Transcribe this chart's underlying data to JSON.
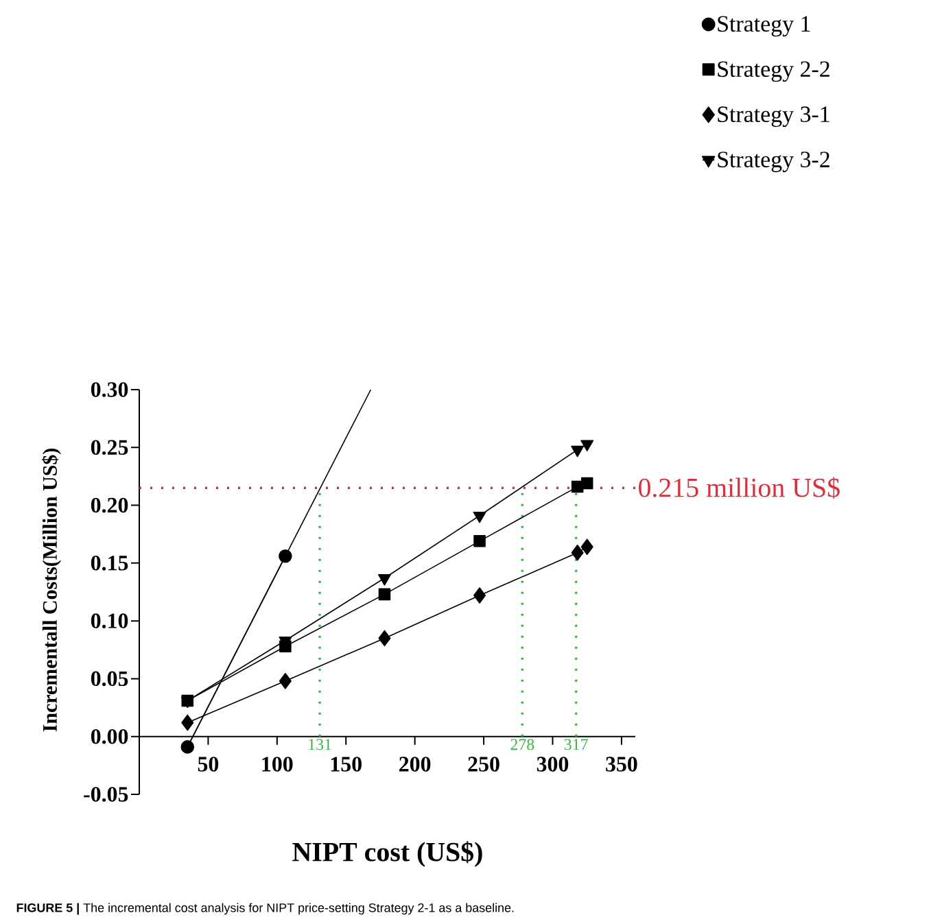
{
  "chart_data": {
    "type": "line",
    "xlabel": "NIPT cost (US$)",
    "ylabel": "Incrementall Costs(Million US$)",
    "xlim": [
      0,
      360
    ],
    "ylim": [
      -0.05,
      0.3
    ],
    "xticks": [
      50,
      100,
      150,
      200,
      250,
      300,
      350
    ],
    "yticks": [
      {
        "value": -0.05,
        "label": "-0.05"
      },
      {
        "value": 0,
        "label": "0.00"
      },
      {
        "value": 0.05,
        "label": "0.05"
      },
      {
        "value": 0.1,
        "label": "0.10"
      },
      {
        "value": 0.15,
        "label": "0.15"
      },
      {
        "value": 0.2,
        "label": "0.20"
      },
      {
        "value": 0.25,
        "label": "0.25"
      },
      {
        "value": 0.3,
        "label": "0.30"
      }
    ],
    "legend": "top right",
    "series": [
      {
        "name": "Strategy 1",
        "color": "#000000",
        "marker": "circle",
        "x": [
          35,
          106
        ],
        "values": [
          -0.009,
          0.156
        ]
      },
      {
        "name": "Strategy 2-2",
        "color": "#000000",
        "marker": "square",
        "x": [
          35,
          106,
          178,
          247,
          318,
          325
        ],
        "values": [
          0.031,
          0.078,
          0.123,
          0.169,
          0.216,
          0.219
        ]
      },
      {
        "name": "Strategy 3-1",
        "color": "#000000",
        "marker": "diamond",
        "x": [
          35,
          106,
          178,
          247,
          318,
          325
        ],
        "values": [
          0.012,
          0.048,
          0.085,
          0.122,
          0.159,
          0.164
        ]
      },
      {
        "name": "Strategy 3-2",
        "color": "#000000",
        "marker": "triangle",
        "x": [
          35,
          106,
          178,
          247,
          318,
          325
        ],
        "values": [
          0.031,
          0.083,
          0.137,
          0.191,
          0.248,
          0.253
        ]
      },
      {
        "type": "line",
        "color": "#000000",
        "marker": "none",
        "x": [
          35,
          168
        ],
        "values": [
          -0.009,
          0.3
        ]
      }
    ],
    "ref_lines": [
      {
        "axis": "y",
        "value": 0.215,
        "label": "0.215 million US$",
        "color": "#d9303c",
        "line_style": "dotted"
      },
      {
        "axis": "x",
        "value": 131,
        "label": "131",
        "color": "#3cb44b",
        "line_style": "dotted"
      },
      {
        "axis": "x",
        "value": 278,
        "label": "278",
        "color": "#3cb44b",
        "line_style": "dotted"
      },
      {
        "axis": "x",
        "value": 317,
        "label": "317",
        "color": "#3cb44b",
        "line_style": "dotted"
      }
    ],
    "annotations": [
      "**FIGURE 5 |** The incremental cost analysis for NIPT price-setting Strategy 2-1 as a baseline."
    ]
  }
}
